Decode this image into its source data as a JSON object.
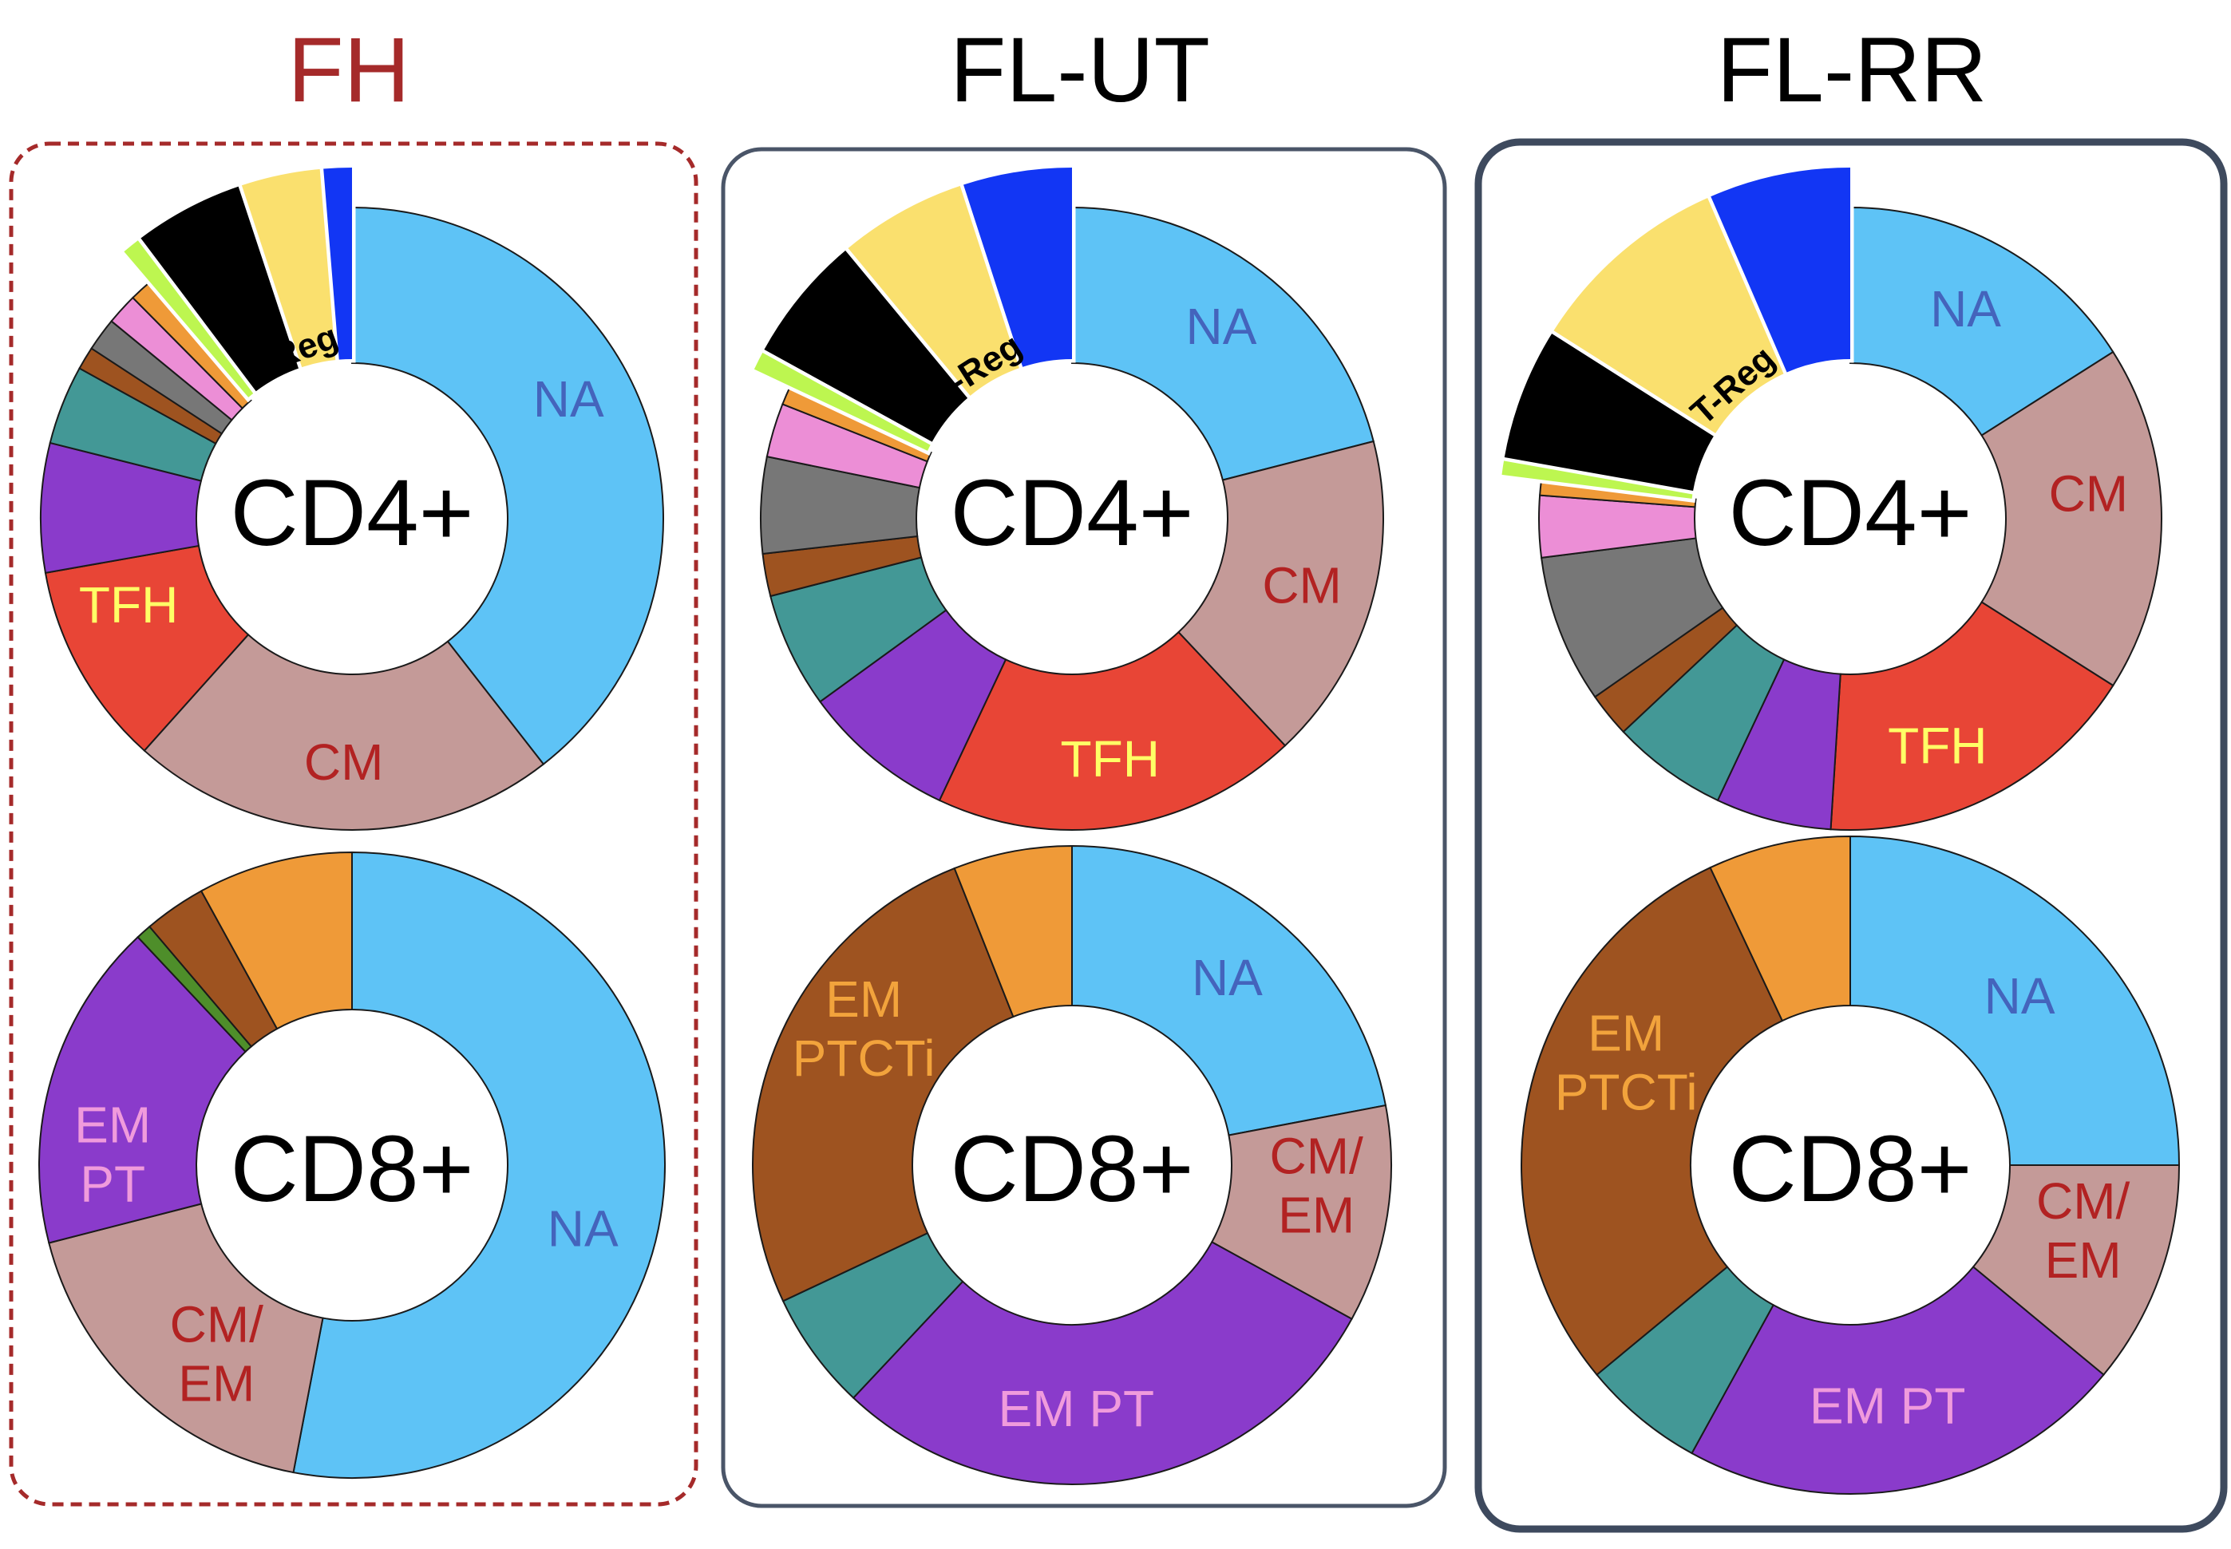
{
  "colors": {
    "NA": "#5EC3F6",
    "CM": "#C49A98",
    "CM/EM": "#C49A98",
    "TFH": "#E84536",
    "EM PT": "#8A3BCB",
    "teal": "#439896",
    "brown": "#9E5320",
    "gray": "#777777",
    "pink": "#EC8ED6",
    "orange": "#EF9A38",
    "lime": "#BDF650",
    "black": "#000000",
    "yellow": "#FAE06E",
    "blue": "#1236F4",
    "green": "#4E8E2A",
    "text_red": "#B22222",
    "text_blue": "#4464BC",
    "text_yellow": "#FFFF66",
    "text_pink": "#F09BDC",
    "text_orange": "#F2A33C"
  },
  "panels": [
    {
      "title": "FH",
      "title_color": "#A52A2A",
      "border": "dashed",
      "cd4": {
        "center": "CD4+",
        "treg_label": "T-Reg",
        "slices": [
          {
            "name": "NA",
            "label": "NA",
            "value": 36.5,
            "color": "#5EC3F6",
            "label_color": "#4464BC"
          },
          {
            "name": "CM",
            "label": "CM",
            "value": 20.5,
            "color": "#C49A98",
            "label_color": "#B22222"
          },
          {
            "name": "TFH",
            "label": "TFH",
            "value": 9.8,
            "color": "#E84536",
            "label_color": "#FFFF66"
          },
          {
            "name": "purple",
            "label": "",
            "value": 6.2,
            "color": "#8A3BCB"
          },
          {
            "name": "teal",
            "label": "",
            "value": 3.8,
            "color": "#439896"
          },
          {
            "name": "brown",
            "label": "",
            "value": 1.1,
            "color": "#9E5320"
          },
          {
            "name": "gray",
            "label": "",
            "value": 1.6,
            "color": "#777777"
          },
          {
            "name": "pink",
            "label": "",
            "value": 1.5,
            "color": "#EC8ED6"
          },
          {
            "name": "orange",
            "label": "",
            "value": 1.1,
            "color": "#EF9A38"
          },
          {
            "name": "lime",
            "label": "",
            "value": 0.9,
            "color": "#BDF650",
            "exploded": true
          },
          {
            "name": "black",
            "label": "",
            "value": 4.8,
            "color": "#000000",
            "exploded": true
          },
          {
            "name": "yellow",
            "label": "",
            "value": 3.5,
            "color": "#FAE06E",
            "exploded": true
          },
          {
            "name": "blue",
            "label": "",
            "value": 1.2,
            "color": "#1236F4",
            "exploded": true
          }
        ]
      },
      "cd8": {
        "center": "CD8+",
        "slices": [
          {
            "name": "NA",
            "label": "NA",
            "value": 53,
            "color": "#5EC3F6",
            "label_color": "#4464BC"
          },
          {
            "name": "CM/EM",
            "label": "CM/ EM",
            "value": 18,
            "color": "#C49A98",
            "label_color": "#B22222"
          },
          {
            "name": "EM PT",
            "label": "EM PT",
            "value": 17,
            "color": "#8A3BCB",
            "label_color": "#F09BDC"
          },
          {
            "name": "green",
            "label": "",
            "value": 0.8,
            "color": "#4E8E2A"
          },
          {
            "name": "brown",
            "label": "",
            "value": 3.2,
            "color": "#9E5320"
          },
          {
            "name": "orange",
            "label": "",
            "value": 8,
            "color": "#EF9A38"
          }
        ]
      }
    },
    {
      "title": "FL-UT",
      "title_color": "#000000",
      "border": "solid",
      "cd4": {
        "center": "CD4+",
        "treg_label": "T-Reg",
        "slices": [
          {
            "name": "NA",
            "label": "NA",
            "value": 21,
            "color": "#5EC3F6",
            "label_color": "#4464BC"
          },
          {
            "name": "CM",
            "label": "CM",
            "value": 17,
            "color": "#C49A98",
            "label_color": "#B22222"
          },
          {
            "name": "TFH",
            "label": "TFH",
            "value": 19,
            "color": "#E84536",
            "label_color": "#FFFF66"
          },
          {
            "name": "purple",
            "label": "",
            "value": 8,
            "color": "#8A3BCB"
          },
          {
            "name": "teal",
            "label": "",
            "value": 6,
            "color": "#439896"
          },
          {
            "name": "brown",
            "label": "",
            "value": 2.2,
            "color": "#9E5320"
          },
          {
            "name": "gray",
            "label": "",
            "value": 5,
            "color": "#777777"
          },
          {
            "name": "pink",
            "label": "",
            "value": 2.8,
            "color": "#EC8ED6"
          },
          {
            "name": "orange",
            "label": "",
            "value": 1,
            "color": "#EF9A38"
          },
          {
            "name": "lime",
            "label": "",
            "value": 1,
            "color": "#BDF650",
            "exploded": true
          },
          {
            "name": "black",
            "label": "",
            "value": 6,
            "color": "#000000",
            "exploded": true
          },
          {
            "name": "yellow",
            "label": "",
            "value": 6,
            "color": "#FAE06E",
            "exploded": true
          },
          {
            "name": "blue",
            "label": "",
            "value": 5,
            "color": "#1236F4",
            "exploded": true
          }
        ]
      },
      "cd8": {
        "center": "CD8+",
        "slices": [
          {
            "name": "NA",
            "label": "NA",
            "value": 22,
            "color": "#5EC3F6",
            "label_color": "#4464BC"
          },
          {
            "name": "CM/EM",
            "label": "CM/ EM",
            "value": 11,
            "color": "#C49A98",
            "label_color": "#B22222"
          },
          {
            "name": "EM PT",
            "label": "EM PT",
            "value": 29,
            "color": "#8A3BCB",
            "label_color": "#F09BDC"
          },
          {
            "name": "teal",
            "label": "",
            "value": 6,
            "color": "#439896"
          },
          {
            "name": "EM PTCTi",
            "label": "EM PTCTi",
            "value": 26,
            "color": "#9E5320",
            "label_color": "#F2A33C"
          },
          {
            "name": "orange",
            "label": "",
            "value": 6,
            "color": "#EF9A38"
          }
        ]
      }
    },
    {
      "title": "FL-RR",
      "title_color": "#000000",
      "border": "solid-thick",
      "cd4": {
        "center": "CD4+",
        "treg_label": "T-Reg",
        "slices": [
          {
            "name": "NA",
            "label": "NA",
            "value": 16,
            "color": "#5EC3F6",
            "label_color": "#4464BC"
          },
          {
            "name": "CM",
            "label": "CM",
            "value": 18,
            "color": "#C49A98",
            "label_color": "#B22222"
          },
          {
            "name": "TFH",
            "label": "TFH",
            "value": 17,
            "color": "#E84536",
            "label_color": "#FFFF66"
          },
          {
            "name": "purple",
            "label": "",
            "value": 6,
            "color": "#8A3BCB"
          },
          {
            "name": "teal",
            "label": "",
            "value": 6,
            "color": "#439896"
          },
          {
            "name": "brown",
            "label": "",
            "value": 2.3,
            "color": "#9E5320"
          },
          {
            "name": "gray",
            "label": "",
            "value": 7.7,
            "color": "#777777"
          },
          {
            "name": "pink",
            "label": "",
            "value": 3.2,
            "color": "#EC8ED6"
          },
          {
            "name": "orange",
            "label": "",
            "value": 0.8,
            "color": "#EF9A38"
          },
          {
            "name": "lime",
            "label": "",
            "value": 0.8,
            "color": "#BDF650",
            "exploded": true
          },
          {
            "name": "black",
            "label": "",
            "value": 6.2,
            "color": "#000000",
            "exploded": true
          },
          {
            "name": "yellow",
            "label": "",
            "value": 9.5,
            "color": "#FAE06E",
            "exploded": true
          },
          {
            "name": "blue",
            "label": "",
            "value": 6.5,
            "color": "#1236F4",
            "exploded": true
          }
        ]
      },
      "cd8": {
        "center": "CD8+",
        "slices": [
          {
            "name": "NA",
            "label": "NA",
            "value": 25,
            "color": "#5EC3F6",
            "label_color": "#4464BC"
          },
          {
            "name": "CM/EM",
            "label": "CM/ EM",
            "value": 11,
            "color": "#C49A98",
            "label_color": "#B22222"
          },
          {
            "name": "EM PT",
            "label": "EM PT",
            "value": 22,
            "color": "#8A3BCB",
            "label_color": "#F09BDC"
          },
          {
            "name": "teal",
            "label": "",
            "value": 6,
            "color": "#439896"
          },
          {
            "name": "EM PTCTi",
            "label": "EM PTCTi",
            "value": 29,
            "color": "#9E5320",
            "label_color": "#F2A33C"
          },
          {
            "name": "orange",
            "label": "",
            "value": 7,
            "color": "#EF9A38"
          }
        ]
      }
    }
  ],
  "chart_data": [
    {
      "type": "pie",
      "title": "FH",
      "subtitle": "CD4+",
      "categories": [
        "NA",
        "CM",
        "TFH",
        "purple",
        "teal",
        "brown",
        "gray",
        "pink",
        "orange",
        "lime",
        "black",
        "yellow",
        "blue"
      ],
      "values": [
        36.5,
        20.5,
        9.8,
        6.2,
        3.8,
        1.1,
        1.6,
        1.5,
        1.1,
        0.9,
        4.8,
        3.5,
        1.2
      ],
      "annotation": "T-Reg"
    },
    {
      "type": "pie",
      "title": "FH",
      "subtitle": "CD8+",
      "categories": [
        "NA",
        "CM/EM",
        "EM PT",
        "green",
        "brown",
        "orange"
      ],
      "values": [
        53,
        18,
        17,
        0.8,
        3.2,
        8
      ]
    },
    {
      "type": "pie",
      "title": "FL-UT",
      "subtitle": "CD4+",
      "categories": [
        "NA",
        "CM",
        "TFH",
        "purple",
        "teal",
        "brown",
        "gray",
        "pink",
        "orange",
        "lime",
        "black",
        "yellow",
        "blue"
      ],
      "values": [
        21,
        17,
        19,
        8,
        6,
        2.2,
        5,
        2.8,
        1,
        1,
        6,
        6,
        5
      ],
      "annotation": "T-Reg"
    },
    {
      "type": "pie",
      "title": "FL-UT",
      "subtitle": "CD8+",
      "categories": [
        "NA",
        "CM/EM",
        "EM PT",
        "teal",
        "EM PTCTi",
        "orange"
      ],
      "values": [
        22,
        11,
        29,
        6,
        26,
        6
      ]
    },
    {
      "type": "pie",
      "title": "FL-RR",
      "subtitle": "CD4+",
      "categories": [
        "NA",
        "CM",
        "TFH",
        "purple",
        "teal",
        "brown",
        "gray",
        "pink",
        "orange",
        "lime",
        "black",
        "yellow",
        "blue"
      ],
      "values": [
        16,
        18,
        17,
        6,
        6,
        2.3,
        7.7,
        3.2,
        0.8,
        0.8,
        6.2,
        9.5,
        6.5
      ],
      "annotation": "T-Reg"
    },
    {
      "type": "pie",
      "title": "FL-RR",
      "subtitle": "CD8+",
      "categories": [
        "NA",
        "CM/EM",
        "EM PT",
        "teal",
        "EM PTCTi",
        "orange"
      ],
      "values": [
        25,
        11,
        22,
        6,
        29,
        7
      ]
    }
  ]
}
